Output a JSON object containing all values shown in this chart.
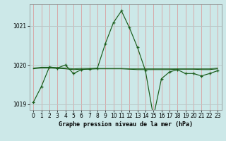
{
  "title": "Graphe pression niveau de la mer (hPa)",
  "bg_color": "#cce8e8",
  "grid_color_v": "#d8a0a0",
  "grid_color_h": "#b8c8c8",
  "line_color": "#1a5c1a",
  "xlim": [
    -0.5,
    23.5
  ],
  "ylim": [
    1018.85,
    1021.55
  ],
  "yticks": [
    1019,
    1020,
    1021
  ],
  "xticks": [
    0,
    1,
    2,
    3,
    4,
    5,
    6,
    7,
    8,
    9,
    10,
    11,
    12,
    13,
    14,
    15,
    16,
    17,
    18,
    19,
    20,
    21,
    22,
    23
  ],
  "series1_x": [
    0,
    1,
    2,
    3,
    4,
    5,
    6,
    7,
    8,
    9,
    10,
    11,
    12,
    13,
    14,
    15,
    16,
    17,
    18,
    19,
    20,
    21,
    22,
    23
  ],
  "series1_y": [
    1019.05,
    1019.45,
    1019.95,
    1019.92,
    1020.0,
    1019.78,
    1019.88,
    1019.9,
    1019.92,
    1020.55,
    1021.08,
    1021.38,
    1020.95,
    1020.45,
    1019.85,
    1018.68,
    1019.65,
    1019.82,
    1019.88,
    1019.78,
    1019.78,
    1019.72,
    1019.78,
    1019.85
  ],
  "series2_y": [
    1019.92,
    1019.94,
    1019.94,
    1019.93,
    1019.92,
    1019.9,
    1019.91,
    1019.91,
    1019.91,
    1019.91,
    1019.91,
    1019.91,
    1019.9,
    1019.9,
    1019.9,
    1019.9,
    1019.9,
    1019.9,
    1019.9,
    1019.9,
    1019.9,
    1019.9,
    1019.9,
    1019.92
  ],
  "series3_y": [
    1019.9,
    1019.92,
    1019.92,
    1019.91,
    1019.9,
    1019.88,
    1019.89,
    1019.89,
    1019.9,
    1019.9,
    1019.9,
    1019.9,
    1019.89,
    1019.88,
    1019.88,
    1019.88,
    1019.88,
    1019.88,
    1019.89,
    1019.89,
    1019.89,
    1019.88,
    1019.88,
    1019.9
  ]
}
